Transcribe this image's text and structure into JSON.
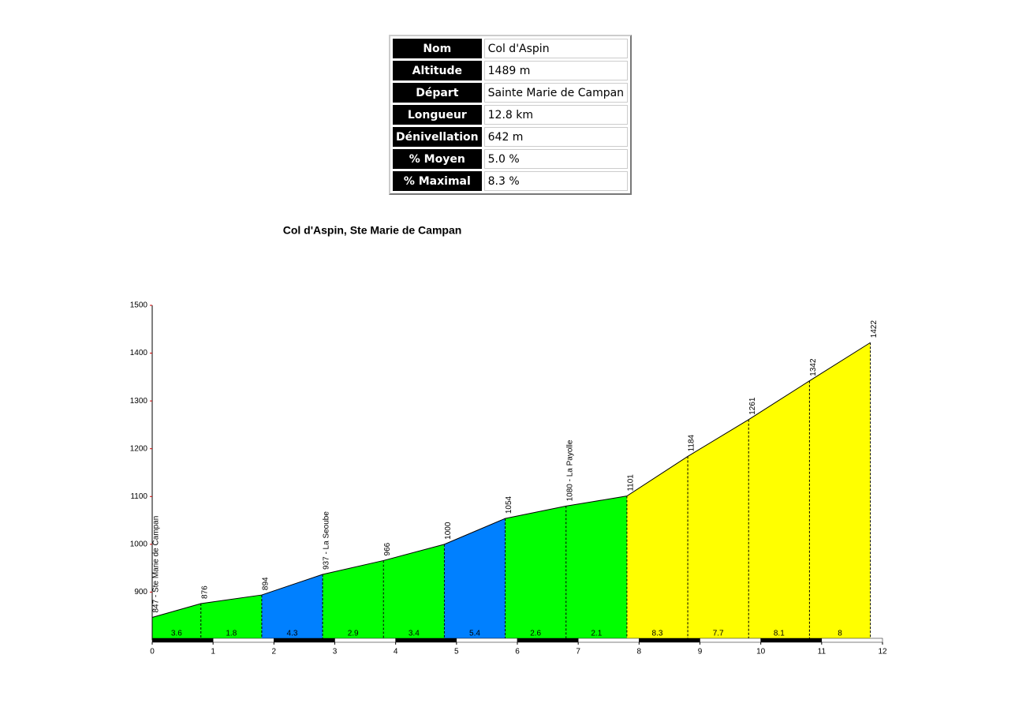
{
  "table": {
    "rows": [
      [
        "Nom",
        "Col d'Aspin"
      ],
      [
        "Altitude",
        "1489 m"
      ],
      [
        "Départ",
        "Sainte Marie de Campan"
      ],
      [
        "Longueur",
        "12.8 km"
      ],
      [
        "Dénivellation",
        "642 m"
      ],
      [
        "% Moyen",
        "5.0 %"
      ],
      [
        "% Maximal",
        "8.3 %"
      ]
    ]
  },
  "chart_data": {
    "type": "area",
    "title": "Col d'Aspin, Ste Marie de Campan",
    "x": [
      0,
      0.8,
      1.8,
      2.8,
      3.8,
      4.8,
      5.8,
      6.8,
      7.8,
      8.8,
      9.8,
      10.8,
      11.8
    ],
    "values": [
      847,
      876,
      894,
      937,
      966,
      1000,
      1054,
      1080,
      1101,
      1184,
      1261,
      1342,
      1422
    ],
    "value_labels": [
      "847 - Ste Marie de Campan",
      "876",
      "894",
      "937 - La Seoube",
      "966",
      "1000",
      "1054",
      "1080 - La Payolle",
      "1101",
      "1184",
      "1261",
      "1342",
      "1422"
    ],
    "gradients": [
      3.6,
      1.8,
      4.3,
      2.9,
      3.4,
      5.4,
      2.6,
      2.1,
      8.3,
      7.7,
      8.1,
      8.0
    ],
    "gradient_colors": [
      "#00ff00",
      "#00ff00",
      "#0080ff",
      "#00ff00",
      "#00ff00",
      "#0080ff",
      "#00ff00",
      "#00ff00",
      "#ffff00",
      "#ffff00",
      "#ffff00",
      "#ffff00"
    ],
    "line_color": "#000000",
    "xlim": [
      0,
      12
    ],
    "xticks": [
      0,
      1,
      2,
      3,
      4,
      5,
      6,
      7,
      8,
      9,
      10,
      11,
      12
    ],
    "ylim": [
      800,
      1500
    ],
    "yticks": [
      900,
      1000,
      1100,
      1200,
      1300,
      1400,
      1500
    ]
  }
}
